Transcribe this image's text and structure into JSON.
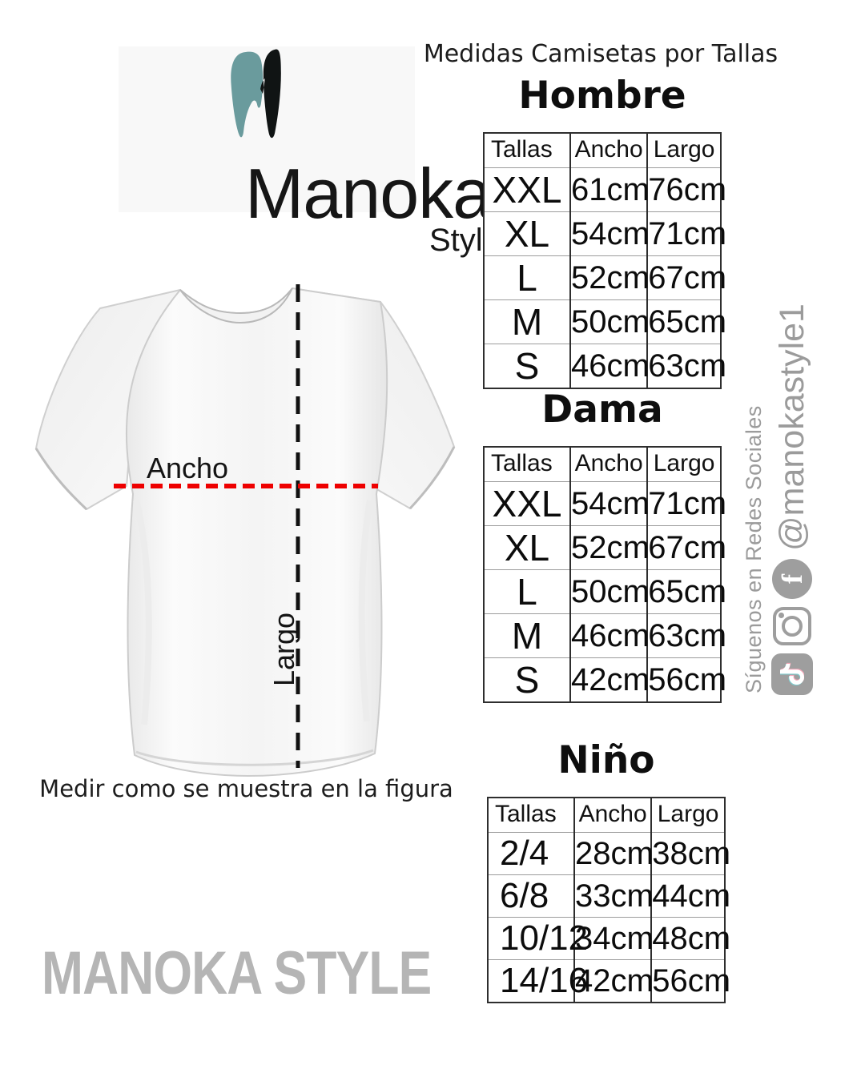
{
  "brand": {
    "logo_text": "Manoka",
    "logo_sub": "Style",
    "watermark": "MANOKA STYLE"
  },
  "header": {
    "title": "Medidas Camisetas por Tallas"
  },
  "figure": {
    "width_label": "Ancho",
    "length_label": "Largo",
    "caption": "Medir como se muestra en la figura"
  },
  "tables": [
    {
      "title": "Hombre",
      "columns": [
        "Tallas",
        "Ancho",
        "Largo"
      ],
      "rows": [
        [
          "XXL",
          "61cm",
          "76cm"
        ],
        [
          "XL",
          "54cm",
          "71cm"
        ],
        [
          "L",
          "52cm",
          "67cm"
        ],
        [
          "M",
          "50cm",
          "65cm"
        ],
        [
          "S",
          "46cm",
          "63cm"
        ]
      ]
    },
    {
      "title": "Dama",
      "columns": [
        "Tallas",
        "Ancho",
        "Largo"
      ],
      "rows": [
        [
          "XXL",
          "54cm",
          "71cm"
        ],
        [
          "XL",
          "52cm",
          "67cm"
        ],
        [
          "L",
          "50cm",
          "65cm"
        ],
        [
          "M",
          "46cm",
          "63cm"
        ],
        [
          "S",
          "42cm",
          "56cm"
        ]
      ]
    },
    {
      "title": "Niño",
      "columns": [
        "Tallas",
        "Ancho",
        "Largo"
      ],
      "rows": [
        [
          "2/4",
          "28cm",
          "38cm"
        ],
        [
          "6/8",
          "33cm",
          "44cm"
        ],
        [
          "10/12",
          "34cm",
          "48cm"
        ],
        [
          "14/16",
          "42cm",
          "56cm"
        ]
      ]
    }
  ],
  "social": {
    "follow_text": "Síguenos en Redes Sociales",
    "handle": "@manokastyle1",
    "icons": [
      "tiktok-icon",
      "instagram-icon",
      "facebook-icon"
    ]
  },
  "colors": {
    "accent_teal": "#6a9b9d",
    "logo_black": "#101414",
    "measure_red": "#ee0000",
    "dash_black": "#111111",
    "social_gray": "#9e9e9e",
    "watermark_gray": "#b5b5b5"
  }
}
